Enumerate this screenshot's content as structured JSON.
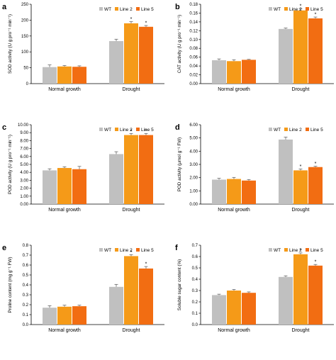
{
  "legend": [
    {
      "name": "WT",
      "color": "#c0c0c0"
    },
    {
      "name": "Line 2",
      "color": "#f59a18"
    },
    {
      "name": "Line 5",
      "color": "#f26d12"
    }
  ],
  "chart_data": [
    {
      "type": "bar",
      "letter": "a",
      "categories": [
        "Normal growth",
        "Drought"
      ],
      "ylabel": "SOD activity (U g pro⁻¹ min⁻¹)",
      "ylim": [
        0,
        250
      ],
      "ticks": [
        0,
        50,
        100,
        150,
        200,
        250
      ],
      "series": [
        {
          "name": "WT",
          "values": [
            52,
            134
          ],
          "errors": [
            7,
            6
          ],
          "stars": [
            false,
            false
          ]
        },
        {
          "name": "Line 2",
          "values": [
            54,
            190
          ],
          "errors": [
            3,
            5
          ],
          "stars": [
            false,
            true
          ]
        },
        {
          "name": "Line 5",
          "values": [
            53,
            179
          ],
          "errors": [
            3,
            4
          ],
          "stars": [
            false,
            true
          ]
        }
      ]
    },
    {
      "type": "bar",
      "letter": "b",
      "categories": [
        "Normal growth",
        "Drought"
      ],
      "ylabel": "CAT activity (U g pro⁻¹ min⁻¹)",
      "ylim": [
        0,
        0.18
      ],
      "ticks": [
        0,
        0.02,
        0.04,
        0.06,
        0.08,
        0.1,
        0.12,
        0.14,
        0.16,
        0.18
      ],
      "series": [
        {
          "name": "WT",
          "values": [
            0.053,
            0.124
          ],
          "errors": [
            0.003,
            0.002
          ],
          "stars": [
            false,
            false
          ]
        },
        {
          "name": "Line 2",
          "values": [
            0.051,
            0.166
          ],
          "errors": [
            0.003,
            0.004
          ],
          "stars": [
            false,
            true
          ]
        },
        {
          "name": "Line 5",
          "values": [
            0.054,
            0.148
          ],
          "errors": [
            0.001,
            0.003
          ],
          "stars": [
            false,
            true
          ]
        }
      ]
    },
    {
      "type": "bar",
      "letter": "c",
      "categories": [
        "Normal growth",
        "Drought"
      ],
      "ylabel": "POD activity (U g pro⁻¹ min⁻¹)",
      "ylim": [
        0,
        10
      ],
      "ticks": [
        0,
        1,
        2,
        3,
        4,
        5,
        6,
        7,
        8,
        9,
        10
      ],
      "tick_labels": [
        "0.00",
        "1.00",
        "2.00",
        "3.00",
        "4.00",
        "5.00",
        "6.00",
        "7.00",
        "8.00",
        "9.00",
        "10.00"
      ],
      "series": [
        {
          "name": "WT",
          "values": [
            4.25,
            6.3
          ],
          "errors": [
            0.2,
            0.3
          ],
          "stars": [
            false,
            false
          ]
        },
        {
          "name": "Line 2",
          "values": [
            4.55,
            8.7
          ],
          "errors": [
            0.15,
            0.2
          ],
          "stars": [
            false,
            true
          ]
        },
        {
          "name": "Line 5",
          "values": [
            4.4,
            8.7
          ],
          "errors": [
            0.35,
            0.2
          ],
          "stars": [
            false,
            true
          ]
        }
      ]
    },
    {
      "type": "bar",
      "letter": "d",
      "categories": [
        "Normal growth",
        "Drought"
      ],
      "ylabel": "POD activity (μmol g⁻¹ FW)",
      "ylim": [
        0,
        6
      ],
      "ticks": [
        0,
        1,
        2,
        3,
        4,
        5,
        6
      ],
      "tick_labels": [
        "0.00",
        "1.00",
        "2.00",
        "3.00",
        "4.00",
        "5.00",
        "6.00"
      ],
      "series": [
        {
          "name": "WT",
          "values": [
            1.85,
            4.88
          ],
          "errors": [
            0.1,
            0.18
          ],
          "stars": [
            false,
            false
          ]
        },
        {
          "name": "Line 2",
          "values": [
            1.9,
            2.55
          ],
          "errors": [
            0.12,
            0.1
          ],
          "stars": [
            false,
            true
          ]
        },
        {
          "name": "Line 5",
          "values": [
            1.78,
            2.8
          ],
          "errors": [
            0.08,
            0.06
          ],
          "stars": [
            false,
            true
          ]
        }
      ]
    },
    {
      "type": "bar",
      "letter": "e",
      "categories": [
        "Normal growth",
        "Drought"
      ],
      "ylabel": "Proline content (mg g⁻¹ FW)",
      "ylim": [
        0,
        0.8
      ],
      "ticks": [
        0,
        0.1,
        0.2,
        0.3,
        0.4,
        0.5,
        0.6,
        0.7,
        0.8
      ],
      "series": [
        {
          "name": "WT",
          "values": [
            0.17,
            0.38
          ],
          "errors": [
            0.02,
            0.025
          ],
          "stars": [
            false,
            false
          ]
        },
        {
          "name": "Line 2",
          "values": [
            0.18,
            0.69
          ],
          "errors": [
            0.015,
            0.015
          ],
          "stars": [
            false,
            true
          ]
        },
        {
          "name": "Line 5",
          "values": [
            0.185,
            0.565
          ],
          "errors": [
            0.01,
            0.02
          ],
          "stars": [
            false,
            true
          ]
        }
      ]
    },
    {
      "type": "bar",
      "letter": "f",
      "categories": [
        "Normal growth",
        "Drought"
      ],
      "ylabel": "Soluble sugar content (%)",
      "ylim": [
        0,
        0.7
      ],
      "ticks": [
        0,
        0.1,
        0.2,
        0.3,
        0.4,
        0.5,
        0.6,
        0.7
      ],
      "series": [
        {
          "name": "WT",
          "values": [
            0.26,
            0.42
          ],
          "errors": [
            0.008,
            0.01
          ],
          "stars": [
            false,
            false
          ]
        },
        {
          "name": "Line 2",
          "values": [
            0.3,
            0.62
          ],
          "errors": [
            0.01,
            0.012
          ],
          "stars": [
            false,
            true
          ]
        },
        {
          "name": "Line 5",
          "values": [
            0.28,
            0.52
          ],
          "errors": [
            0.008,
            0.01
          ],
          "stars": [
            false,
            true
          ]
        }
      ]
    }
  ]
}
